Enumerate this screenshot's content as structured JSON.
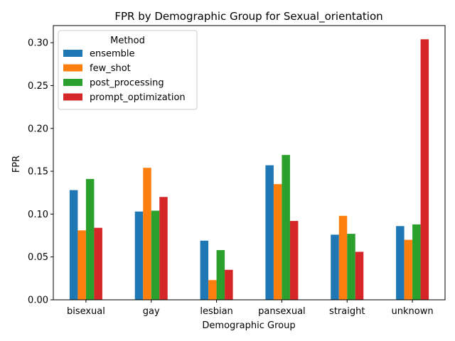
{
  "chart_data": {
    "type": "bar",
    "title": "FPR by Demographic Group for Sexual_orientation",
    "xlabel": "Demographic Group",
    "ylabel": "FPR",
    "categories": [
      "bisexual",
      "gay",
      "lesbian",
      "pansexual",
      "straight",
      "unknown"
    ],
    "series": [
      {
        "name": "ensemble",
        "color": "#1f77b4",
        "values": [
          0.128,
          0.103,
          0.069,
          0.157,
          0.076,
          0.086
        ]
      },
      {
        "name": "few_shot",
        "color": "#ff7f0e",
        "values": [
          0.081,
          0.154,
          0.023,
          0.135,
          0.098,
          0.07
        ]
      },
      {
        "name": "post_processing",
        "color": "#2ca02c",
        "values": [
          0.141,
          0.104,
          0.058,
          0.169,
          0.077,
          0.088
        ]
      },
      {
        "name": "prompt_optimization",
        "color": "#d62728",
        "values": [
          0.084,
          0.12,
          0.035,
          0.092,
          0.056,
          0.304
        ]
      }
    ],
    "ylim": [
      0,
      0.32
    ],
    "yticks": [
      "0.00",
      "0.05",
      "0.10",
      "0.15",
      "0.20",
      "0.25",
      "0.30"
    ],
    "legend": {
      "title": "Method",
      "position": "top-left"
    },
    "grid": false
  }
}
